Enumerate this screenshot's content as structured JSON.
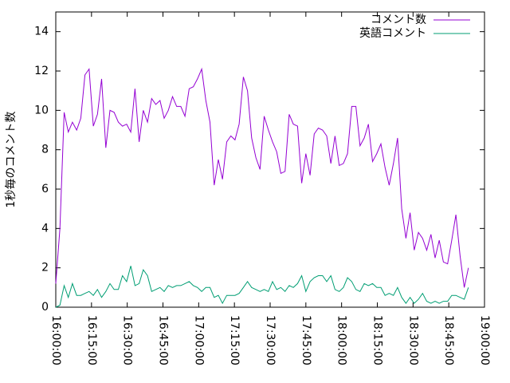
{
  "chart_data": {
    "type": "line",
    "ylabel": "1秒毎のコメント数",
    "legend": "top-right",
    "x": [
      "16:00:00",
      "16:01:45",
      "16:03:30",
      "16:05:15",
      "16:07:00",
      "16:08:45",
      "16:10:30",
      "16:12:15",
      "16:14:00",
      "16:15:45",
      "16:17:30",
      "16:19:15",
      "16:21:00",
      "16:22:45",
      "16:24:30",
      "16:26:15",
      "16:28:00",
      "16:29:45",
      "16:31:30",
      "16:33:15",
      "16:35:00",
      "16:36:45",
      "16:38:30",
      "16:40:15",
      "16:42:00",
      "16:43:45",
      "16:45:30",
      "16:47:15",
      "16:49:00",
      "16:50:45",
      "16:52:30",
      "16:54:15",
      "16:56:00",
      "16:57:45",
      "16:59:30",
      "17:01:15",
      "17:03:00",
      "17:04:45",
      "17:06:30",
      "17:08:15",
      "17:10:00",
      "17:11:45",
      "17:13:30",
      "17:15:15",
      "17:17:00",
      "17:18:45",
      "17:20:30",
      "17:22:15",
      "17:24:00",
      "17:25:45",
      "17:27:30",
      "17:29:15",
      "17:31:00",
      "17:32:45",
      "17:34:30",
      "17:36:15",
      "17:38:00",
      "17:39:45",
      "17:41:30",
      "17:43:15",
      "17:45:00",
      "17:46:45",
      "17:48:30",
      "17:50:15",
      "17:52:00",
      "17:53:45",
      "17:55:30",
      "17:57:15",
      "17:59:00",
      "18:00:45",
      "18:02:30",
      "18:04:15",
      "18:06:00",
      "18:07:45",
      "18:09:30",
      "18:11:15",
      "18:13:00",
      "18:14:45",
      "18:16:30",
      "18:18:15",
      "18:20:00",
      "18:21:45",
      "18:23:30",
      "18:25:15",
      "18:27:00",
      "18:28:45",
      "18:30:30",
      "18:32:15",
      "18:34:00",
      "18:35:45",
      "18:37:30",
      "18:39:15",
      "18:41:00",
      "18:42:45",
      "18:44:30",
      "18:46:15",
      "18:48:00",
      "18:49:45",
      "18:51:30",
      "18:53:15"
    ],
    "series": [
      {
        "name": "コメント数",
        "color": "#9400d3",
        "values": [
          1.2,
          4,
          9.9,
          8.9,
          9.4,
          9.0,
          9.6,
          11.8,
          12.1,
          9.2,
          9.8,
          11.6,
          8.1,
          10.0,
          9.9,
          9.4,
          9.2,
          9.3,
          8.9,
          11.1,
          8.4,
          10.0,
          9.4,
          10.6,
          10.3,
          10.5,
          9.6,
          10.0,
          10.7,
          10.2,
          10.2,
          9.7,
          11.1,
          11.2,
          11.6,
          12.1,
          10.5,
          9.4,
          6.2,
          7.5,
          6.5,
          8.4,
          8.7,
          8.5,
          9.3,
          11.7,
          11.0,
          8.6,
          7.6,
          7.0,
          9.7,
          9.0,
          8.4,
          7.9,
          6.8,
          6.9,
          9.8,
          9.3,
          9.2,
          6.3,
          7.8,
          6.7,
          8.8,
          9.1,
          9.0,
          8.7,
          7.3,
          8.7,
          7.2,
          7.3,
          7.8,
          10.2,
          10.2,
          8.2,
          8.6,
          9.3,
          7.4,
          7.8,
          8.3,
          7.1,
          6.2,
          7.3,
          8.6,
          5.0,
          3.5,
          4.8,
          2.9,
          3.8,
          3.5,
          2.9,
          3.7,
          2.5,
          3.4,
          2.3,
          2.2,
          3.4,
          4.7,
          2.6,
          1.0,
          2.0
        ]
      },
      {
        "name": "英語コメント",
        "color": "#009e73",
        "values": [
          0,
          0.1,
          1.1,
          0.5,
          1.2,
          0.6,
          0.6,
          0.7,
          0.8,
          0.6,
          0.9,
          0.5,
          0.8,
          1.2,
          0.9,
          0.9,
          1.6,
          1.3,
          2.1,
          1.1,
          1.2,
          1.9,
          1.6,
          0.8,
          0.9,
          1.0,
          0.8,
          1.1,
          1.0,
          1.1,
          1.1,
          1.2,
          1.3,
          1.1,
          1.0,
          0.8,
          1.0,
          1.0,
          0.5,
          0.6,
          0.2,
          0.6,
          0.6,
          0.6,
          0.7,
          1.0,
          1.3,
          1.0,
          0.9,
          0.8,
          0.9,
          0.8,
          1.3,
          0.9,
          1.0,
          0.8,
          1.1,
          1.0,
          1.2,
          1.6,
          0.8,
          1.3,
          1.5,
          1.6,
          1.6,
          1.3,
          1.6,
          0.9,
          0.8,
          1.0,
          1.5,
          1.3,
          0.9,
          0.8,
          1.2,
          1.1,
          1.2,
          1.0,
          1.0,
          0.6,
          0.7,
          0.6,
          1.0,
          0.5,
          0.2,
          0.5,
          0.2,
          0.4,
          0.7,
          0.3,
          0.2,
          0.3,
          0.2,
          0.3,
          0.3,
          0.6,
          0.6,
          0.5,
          0.4,
          1.0
        ]
      }
    ],
    "xlim": [
      "16:00:00",
      "19:00:00"
    ],
    "xticks": [
      "16:00:00",
      "16:15:00",
      "16:30:00",
      "16:45:00",
      "17:00:00",
      "17:15:00",
      "17:30:00",
      "17:45:00",
      "18:00:00",
      "18:15:00",
      "18:30:00",
      "18:45:00",
      "19:00:00"
    ],
    "ylim": [
      0,
      15
    ],
    "yticks": [
      0,
      2,
      4,
      6,
      8,
      10,
      12,
      14
    ]
  }
}
